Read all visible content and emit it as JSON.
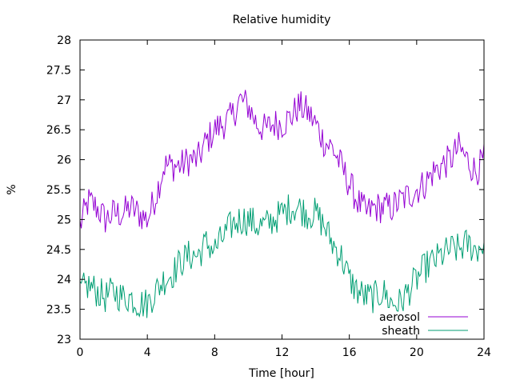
{
  "chart_data": {
    "type": "line",
    "title": "Relative humidity",
    "xlabel": "Time [hour]",
    "ylabel": "%",
    "xlim": [
      0,
      24
    ],
    "ylim": [
      23,
      28
    ],
    "xticks": [
      0,
      4,
      8,
      12,
      16,
      20,
      24
    ],
    "xtick_labels": [
      "0",
      "4",
      "8",
      "12",
      "16",
      "20",
      "24"
    ],
    "yticks": [
      23,
      23.5,
      24,
      24.5,
      25,
      25.5,
      26,
      26.5,
      27,
      27.5,
      28
    ],
    "ytick_labels": [
      "23",
      "23.5",
      "24",
      "24.5",
      "25",
      "25.5",
      "26",
      "26.5",
      "27",
      "27.5",
      "28"
    ],
    "grid": false,
    "legend_position": "bottom-right",
    "series": [
      {
        "name": "aerosol",
        "color": "#9400d3",
        "x": [
          0,
          0.5,
          1,
          1.5,
          2,
          2.5,
          3,
          3.5,
          4,
          4.5,
          5,
          5.5,
          6,
          6.5,
          7,
          7.5,
          8,
          8.5,
          9,
          9.5,
          10,
          10.5,
          11,
          11.5,
          12,
          12.5,
          13,
          13.5,
          14,
          14.5,
          15,
          15.5,
          16,
          16.5,
          17,
          17.5,
          18,
          18.5,
          19,
          19.5,
          20,
          20.5,
          21,
          21.5,
          22,
          22.5,
          23,
          23.5,
          24
        ],
        "y": [
          24.9,
          25.3,
          25.2,
          25.0,
          25.1,
          25.1,
          25.2,
          25.1,
          25.0,
          25.4,
          25.9,
          25.9,
          25.9,
          26.0,
          26.0,
          26.3,
          26.5,
          26.6,
          26.7,
          27.0,
          26.9,
          26.6,
          26.5,
          26.6,
          26.6,
          26.7,
          26.9,
          26.8,
          26.6,
          26.3,
          26.2,
          25.9,
          25.6,
          25.3,
          25.1,
          25.2,
          25.2,
          25.2,
          25.3,
          25.4,
          25.5,
          25.6,
          25.8,
          25.9,
          26.0,
          26.2,
          26.0,
          25.8,
          26.0
        ]
      },
      {
        "name": "sheath",
        "color": "#009e73",
        "x": [
          0,
          0.5,
          1,
          1.5,
          2,
          2.5,
          3,
          3.5,
          4,
          4.5,
          5,
          5.5,
          6,
          6.5,
          7,
          7.5,
          8,
          8.5,
          9,
          9.5,
          10,
          10.5,
          11,
          11.5,
          12,
          12.5,
          13,
          13.5,
          14,
          14.5,
          15,
          15.5,
          16,
          16.5,
          17,
          17.5,
          18,
          18.5,
          19,
          19.5,
          20,
          20.5,
          21,
          21.5,
          22,
          22.5,
          23,
          23.5,
          24
        ],
        "y": [
          23.8,
          23.9,
          23.8,
          23.7,
          23.8,
          23.7,
          23.7,
          23.6,
          23.6,
          23.8,
          24.0,
          24.1,
          24.3,
          24.4,
          24.4,
          24.6,
          24.5,
          24.7,
          24.9,
          25.0,
          25.0,
          24.9,
          24.9,
          25.0,
          25.1,
          25.2,
          25.2,
          25.1,
          25.1,
          24.9,
          24.6,
          24.4,
          24.0,
          23.8,
          23.7,
          23.7,
          23.8,
          23.6,
          23.6,
          23.8,
          24.0,
          24.2,
          24.3,
          24.4,
          24.5,
          24.5,
          24.6,
          24.5,
          24.6
        ]
      }
    ]
  }
}
